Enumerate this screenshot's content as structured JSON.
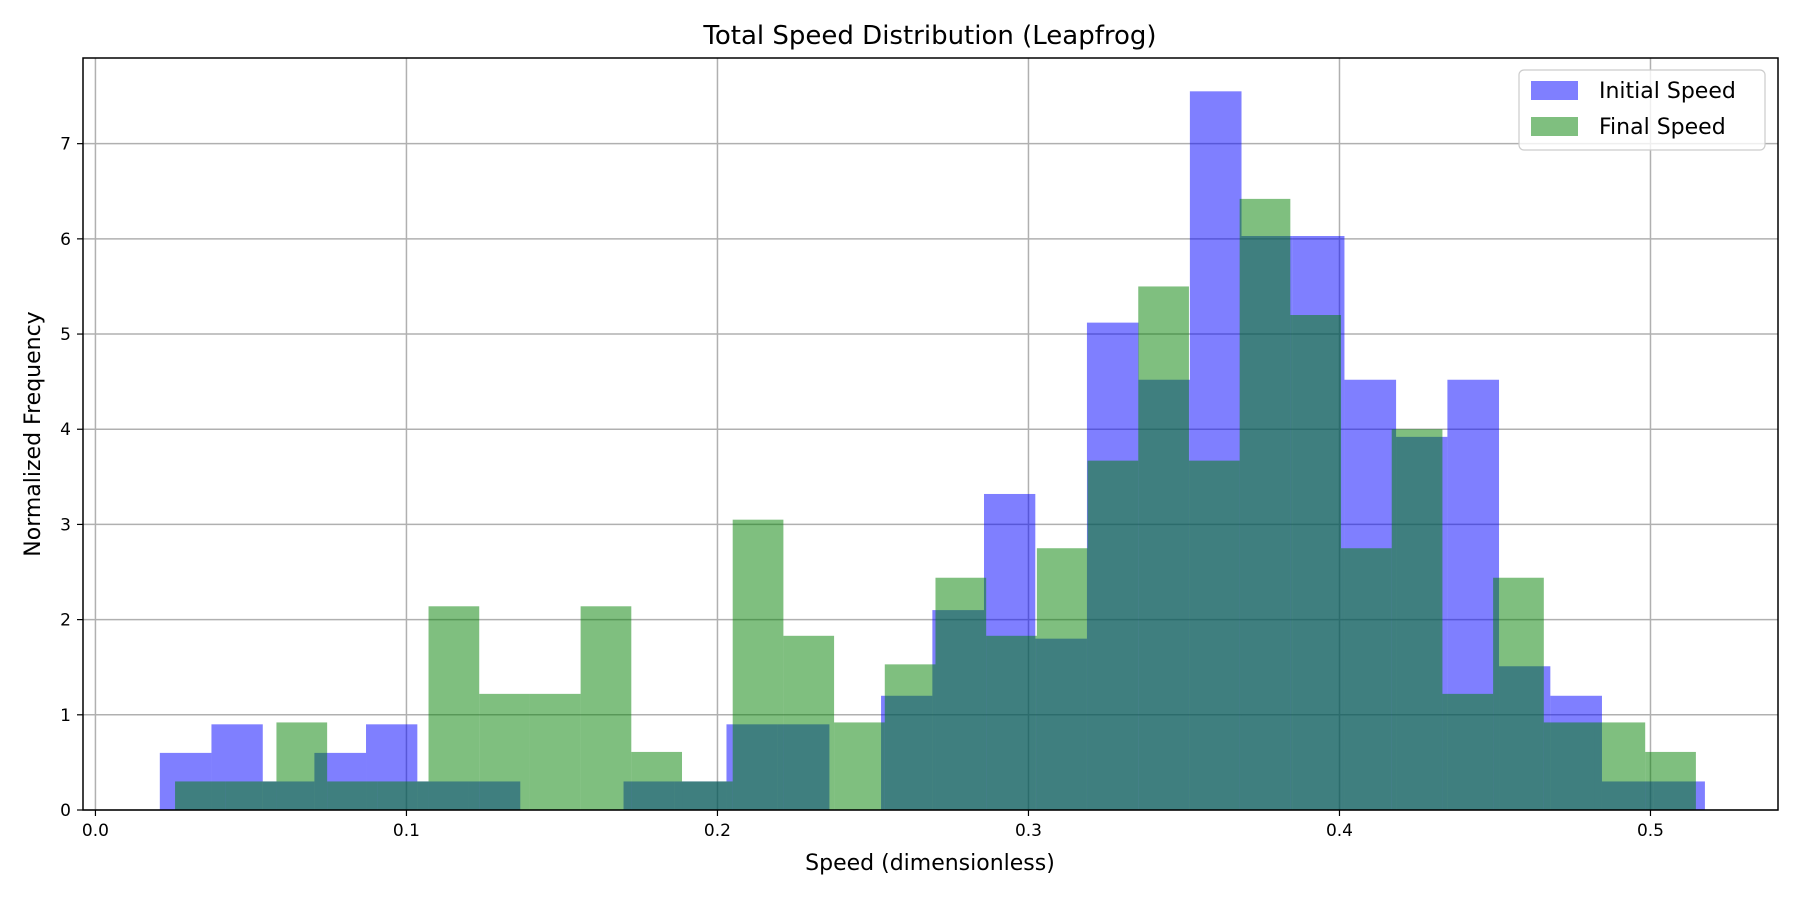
{
  "chart_data": {
    "type": "bar",
    "title": "Total Speed Distribution (Leapfrog)",
    "xlabel": "Speed (dimensionless)",
    "ylabel": "Normalized Frequency",
    "xlim": [
      -0.004,
      0.541
    ],
    "ylim": [
      0,
      7.9
    ],
    "xticks": [
      0.0,
      0.1,
      0.2,
      0.3,
      0.4,
      0.5
    ],
    "xtick_labels": [
      "0.0",
      "0.1",
      "0.2",
      "0.3",
      "0.4",
      "0.5"
    ],
    "yticks": [
      0,
      1,
      2,
      3,
      4,
      5,
      6,
      7
    ],
    "ytick_labels": [
      "0",
      "1",
      "2",
      "3",
      "4",
      "5",
      "6",
      "7"
    ],
    "grid": true,
    "legend_position": "top-right",
    "series": [
      {
        "name": "Initial Speed",
        "color": "#0000ff",
        "opacity": 0.5,
        "bins": [
          [
            0.0207,
            0.0373,
            0.6
          ],
          [
            0.0373,
            0.0538,
            0.9
          ],
          [
            0.0538,
            0.0704,
            0.3
          ],
          [
            0.0704,
            0.087,
            0.6
          ],
          [
            0.087,
            0.1035,
            0.9
          ],
          [
            0.1035,
            0.1201,
            0.3
          ],
          [
            0.1201,
            0.1366,
            0.3
          ],
          [
            0.1366,
            0.1532,
            0.0
          ],
          [
            0.1532,
            0.1698,
            0.0
          ],
          [
            0.1698,
            0.1863,
            0.3
          ],
          [
            0.1863,
            0.2029,
            0.3
          ],
          [
            0.2029,
            0.2194,
            0.9
          ],
          [
            0.2194,
            0.236,
            0.9
          ],
          [
            0.236,
            0.2526,
            0.0
          ],
          [
            0.2526,
            0.2691,
            1.2
          ],
          [
            0.2691,
            0.2857,
            2.1
          ],
          [
            0.2857,
            0.3022,
            3.32
          ],
          [
            0.3022,
            0.3188,
            1.8
          ],
          [
            0.3188,
            0.3354,
            5.12
          ],
          [
            0.3354,
            0.3519,
            4.52
          ],
          [
            0.3519,
            0.3685,
            7.55
          ],
          [
            0.3685,
            0.385,
            6.03
          ],
          [
            0.385,
            0.4016,
            6.03
          ],
          [
            0.4016,
            0.4182,
            4.52
          ],
          [
            0.4182,
            0.4347,
            3.92
          ],
          [
            0.4347,
            0.4513,
            4.52
          ],
          [
            0.4513,
            0.4678,
            1.51
          ],
          [
            0.4678,
            0.4844,
            1.2
          ],
          [
            0.4844,
            0.501,
            0.3
          ],
          [
            0.501,
            0.5175,
            0.3
          ]
        ]
      },
      {
        "name": "Final Speed",
        "color": "#008000",
        "opacity": 0.5,
        "bins": [
          [
            0.0256,
            0.0419,
            0.3
          ],
          [
            0.0419,
            0.0582,
            0.3
          ],
          [
            0.0582,
            0.0745,
            0.92
          ],
          [
            0.0745,
            0.0908,
            0.3
          ],
          [
            0.0908,
            0.1071,
            0.3
          ],
          [
            0.1071,
            0.1234,
            2.14
          ],
          [
            0.1234,
            0.1397,
            1.22
          ],
          [
            0.1397,
            0.156,
            1.22
          ],
          [
            0.156,
            0.1723,
            2.14
          ],
          [
            0.1723,
            0.1886,
            0.61
          ],
          [
            0.1886,
            0.2049,
            0.3
          ],
          [
            0.2049,
            0.2212,
            3.05
          ],
          [
            0.2212,
            0.2375,
            1.83
          ],
          [
            0.2375,
            0.2538,
            0.92
          ],
          [
            0.2538,
            0.2701,
            1.53
          ],
          [
            0.2701,
            0.2864,
            2.44
          ],
          [
            0.2864,
            0.3027,
            1.83
          ],
          [
            0.3027,
            0.319,
            2.75
          ],
          [
            0.319,
            0.3353,
            3.67
          ],
          [
            0.3353,
            0.3516,
            5.5
          ],
          [
            0.3516,
            0.3679,
            3.67
          ],
          [
            0.3679,
            0.3842,
            6.42
          ],
          [
            0.3842,
            0.4005,
            5.2
          ],
          [
            0.4005,
            0.4168,
            2.75
          ],
          [
            0.4168,
            0.4331,
            4.0
          ],
          [
            0.4331,
            0.4494,
            1.22
          ],
          [
            0.4494,
            0.4657,
            2.44
          ],
          [
            0.4657,
            0.482,
            0.92
          ],
          [
            0.482,
            0.4983,
            0.92
          ],
          [
            0.4983,
            0.5146,
            0.61
          ]
        ]
      }
    ]
  }
}
